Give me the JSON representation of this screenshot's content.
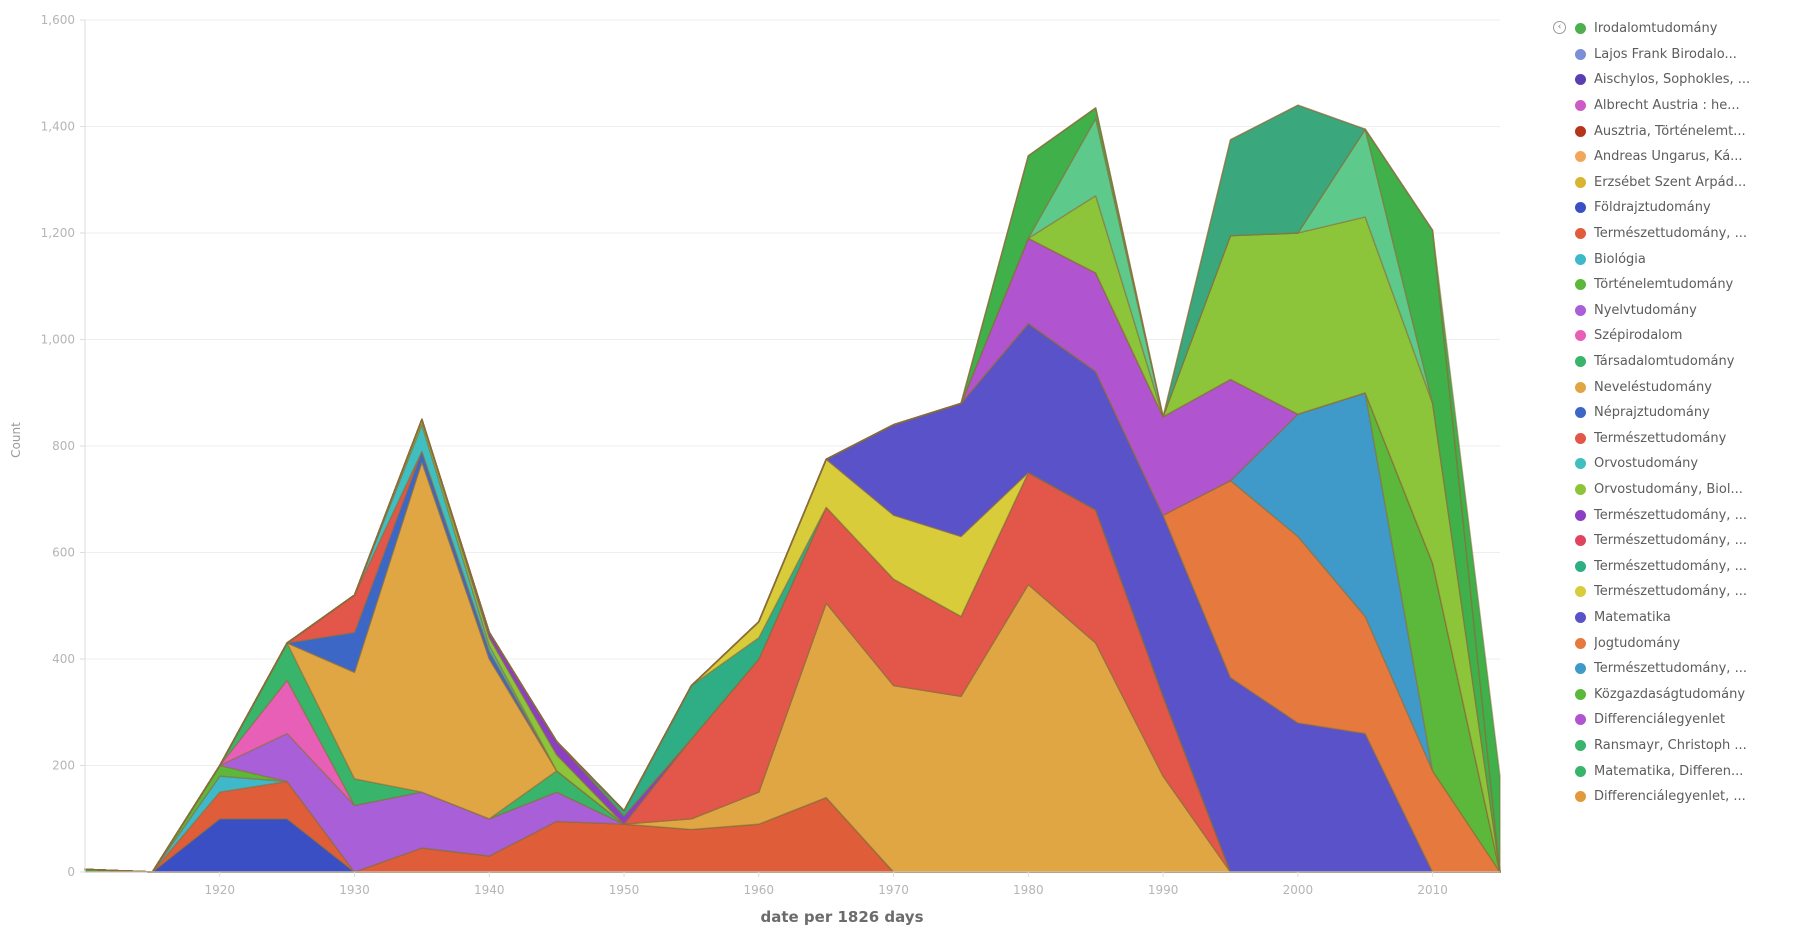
{
  "chart_data": {
    "type": "area",
    "stacked": true,
    "xlabel": "date per 1826 days",
    "ylabel": "Count",
    "xlim": [
      1910,
      2015
    ],
    "ylim": [
      0,
      1600
    ],
    "x_ticks": [
      1920,
      1930,
      1940,
      1950,
      1960,
      1970,
      1980,
      1990,
      2000,
      2010
    ],
    "y_ticks": [
      0,
      200,
      400,
      600,
      800,
      1000,
      1200,
      1400,
      1600
    ],
    "y_tick_labels": [
      "0",
      "200",
      "400",
      "600",
      "800",
      "1,000",
      "1,200",
      "1,400",
      "1,600"
    ],
    "legend_position": "right",
    "x": [
      1910,
      1915,
      1920,
      1925,
      1930,
      1935,
      1940,
      1945,
      1950,
      1955,
      1960,
      1965,
      1970,
      1975,
      1980,
      1985,
      1990,
      1995,
      2000,
      2005,
      2010,
      2015
    ],
    "series": [
      {
        "name": "Irodalomtudomány",
        "color": "#4caf50",
        "values": [
          5,
          0,
          0,
          0,
          0,
          0,
          0,
          0,
          0,
          0,
          0,
          0,
          0,
          0,
          0,
          0,
          0,
          0,
          0,
          0,
          0,
          0
        ]
      },
      {
        "name": "Lajos Frank Birodalo...",
        "color": "#7b8fd6",
        "values": [
          0,
          0,
          0,
          0,
          0,
          0,
          0,
          0,
          0,
          0,
          0,
          0,
          0,
          0,
          0,
          0,
          0,
          0,
          0,
          0,
          0,
          0
        ]
      },
      {
        "name": "Aischylos, Sophokles, ...",
        "color": "#5a3fb0",
        "values": [
          0,
          0,
          0,
          0,
          0,
          0,
          0,
          0,
          0,
          0,
          0,
          0,
          0,
          0,
          0,
          0,
          0,
          0,
          0,
          0,
          0,
          0
        ]
      },
      {
        "name": "Albrecht Austria : he...",
        "color": "#cc5bc8",
        "values": [
          0,
          0,
          0,
          0,
          0,
          0,
          0,
          0,
          0,
          0,
          0,
          0,
          0,
          0,
          0,
          0,
          0,
          0,
          0,
          0,
          0,
          0
        ]
      },
      {
        "name": "Ausztria, Történelemt...",
        "color": "#b5341c",
        "values": [
          0,
          0,
          0,
          0,
          0,
          0,
          0,
          0,
          0,
          0,
          0,
          0,
          0,
          0,
          0,
          0,
          0,
          0,
          0,
          0,
          0,
          0
        ]
      },
      {
        "name": "Andreas Ungarus, Ká...",
        "color": "#f2a65a",
        "values": [
          0,
          0,
          0,
          0,
          0,
          0,
          0,
          0,
          0,
          0,
          0,
          0,
          0,
          0,
          0,
          0,
          0,
          0,
          0,
          0,
          0,
          0
        ]
      },
      {
        "name": "Erzsébet Szent Árpád...",
        "color": "#d9b433",
        "values": [
          0,
          0,
          0,
          0,
          0,
          0,
          0,
          0,
          0,
          0,
          0,
          0,
          0,
          0,
          0,
          0,
          0,
          0,
          0,
          0,
          0,
          0
        ]
      },
      {
        "name": "Földrajztudomány",
        "color": "#3b4fc4",
        "values": [
          0,
          0,
          100,
          100,
          0,
          0,
          0,
          0,
          0,
          0,
          0,
          0,
          0,
          0,
          0,
          0,
          0,
          0,
          0,
          0,
          0,
          0
        ]
      },
      {
        "name": "Természettudomány, ...",
        "color": "#e05d3a",
        "values": [
          0,
          0,
          50,
          70,
          0,
          45,
          30,
          95,
          90,
          80,
          90,
          140,
          0,
          0,
          0,
          0,
          0,
          0,
          0,
          0,
          0,
          0
        ]
      },
      {
        "name": "Biológia",
        "color": "#3fb8c9",
        "values": [
          0,
          0,
          30,
          0,
          0,
          0,
          0,
          0,
          0,
          0,
          0,
          0,
          0,
          0,
          0,
          0,
          0,
          0,
          0,
          0,
          0,
          0
        ]
      },
      {
        "name": "Történelemtudomány",
        "color": "#5cb83a",
        "values": [
          0,
          0,
          20,
          0,
          0,
          0,
          0,
          0,
          0,
          0,
          0,
          0,
          0,
          0,
          0,
          0,
          0,
          0,
          0,
          0,
          0,
          0
        ]
      },
      {
        "name": "Nyelvtudomány",
        "color": "#a95fd8",
        "values": [
          0,
          0,
          0,
          90,
          125,
          105,
          70,
          55,
          0,
          0,
          0,
          0,
          0,
          0,
          0,
          0,
          0,
          0,
          0,
          0,
          0,
          0
        ]
      },
      {
        "name": "Szépirodalom",
        "color": "#e85fb8",
        "values": [
          0,
          0,
          0,
          100,
          0,
          0,
          0,
          0,
          0,
          0,
          0,
          0,
          0,
          0,
          0,
          0,
          0,
          0,
          0,
          0,
          0,
          0
        ]
      },
      {
        "name": "Társadalomtudomány",
        "color": "#38b56a",
        "values": [
          0,
          0,
          0,
          70,
          50,
          0,
          0,
          40,
          0,
          0,
          0,
          0,
          0,
          0,
          0,
          0,
          0,
          0,
          0,
          0,
          0,
          0
        ]
      },
      {
        "name": "Neveléstudomány",
        "color": "#e0a644",
        "values": [
          0,
          0,
          0,
          0,
          200,
          620,
          300,
          0,
          0,
          20,
          60,
          365,
          350,
          330,
          540,
          430,
          180,
          0,
          0,
          0,
          0,
          0
        ]
      },
      {
        "name": "Néprajztudomány",
        "color": "#3d67c7",
        "values": [
          0,
          0,
          0,
          0,
          75,
          20,
          15,
          0,
          0,
          0,
          0,
          0,
          0,
          0,
          0,
          0,
          0,
          0,
          0,
          0,
          0,
          0
        ]
      },
      {
        "name": "Természettudomány",
        "color": "#e2574a",
        "values": [
          0,
          0,
          0,
          0,
          70,
          0,
          0,
          0,
          0,
          150,
          250,
          180,
          200,
          150,
          210,
          250,
          150,
          0,
          0,
          0,
          0,
          0
        ]
      },
      {
        "name": "Orvostudomány",
        "color": "#3fbfc0",
        "values": [
          0,
          0,
          0,
          0,
          0,
          50,
          10,
          0,
          0,
          0,
          0,
          0,
          0,
          0,
          0,
          0,
          0,
          0,
          0,
          0,
          0,
          0
        ]
      },
      {
        "name": "Orvostudomány, Biol...",
        "color": "#8cc43a",
        "values": [
          0,
          0,
          0,
          0,
          0,
          10,
          15,
          30,
          0,
          0,
          0,
          0,
          0,
          0,
          0,
          0,
          0,
          0,
          0,
          0,
          0,
          0
        ]
      },
      {
        "name": "Természettudomány, ...",
        "color": "#8a3fc4",
        "values": [
          0,
          0,
          0,
          0,
          0,
          0,
          10,
          25,
          15,
          0,
          0,
          0,
          0,
          0,
          0,
          0,
          0,
          0,
          0,
          0,
          0,
          0
        ]
      },
      {
        "name": "Természettudomány, ...",
        "color": "#e0455e",
        "values": [
          0,
          0,
          0,
          0,
          0,
          0,
          0,
          0,
          0,
          0,
          0,
          0,
          0,
          0,
          0,
          0,
          0,
          0,
          0,
          0,
          0,
          0
        ]
      },
      {
        "name": "Természettudomány, ...",
        "color": "#2fae86",
        "values": [
          0,
          0,
          0,
          0,
          0,
          0,
          0,
          0,
          10,
          100,
          40,
          0,
          0,
          0,
          0,
          0,
          0,
          0,
          0,
          0,
          0,
          0
        ]
      },
      {
        "name": "Természettudomány, ...",
        "color": "#d9cc3a",
        "values": [
          0,
          0,
          0,
          0,
          0,
          0,
          0,
          0,
          0,
          0,
          30,
          90,
          120,
          150,
          0,
          0,
          0,
          0,
          0,
          0,
          0,
          0
        ]
      },
      {
        "name": "Matematika",
        "color": "#5a52c9",
        "values": [
          0,
          0,
          0,
          0,
          0,
          0,
          0,
          0,
          0,
          0,
          0,
          0,
          170,
          250,
          280,
          260,
          340,
          365,
          280,
          260,
          0,
          0
        ]
      },
      {
        "name": "Jogtudomány",
        "color": "#e67a3e",
        "values": [
          0,
          0,
          0,
          0,
          0,
          0,
          0,
          0,
          0,
          0,
          0,
          0,
          0,
          0,
          0,
          0,
          0,
          370,
          350,
          220,
          190,
          0
        ]
      },
      {
        "name": "Természettudomány, ...",
        "color": "#3f9ac9",
        "values": [
          0,
          0,
          0,
          0,
          0,
          0,
          0,
          0,
          0,
          0,
          0,
          0,
          0,
          0,
          0,
          0,
          0,
          0,
          230,
          420,
          0,
          0
        ]
      },
      {
        "name": "Közgazdaságtudomány",
        "color": "#5cb83a",
        "values": [
          0,
          0,
          0,
          0,
          0,
          0,
          0,
          0,
          0,
          0,
          0,
          0,
          0,
          0,
          0,
          0,
          0,
          0,
          0,
          0,
          390,
          0
        ]
      },
      {
        "name": "Differenciálegyenlet",
        "color": "#b055cf",
        "values": [
          0,
          0,
          0,
          0,
          0,
          0,
          0,
          0,
          0,
          0,
          0,
          0,
          0,
          0,
          160,
          185,
          185,
          190,
          0,
          0,
          0,
          0
        ]
      },
      {
        "name": "Ransmayr, Christoph ...",
        "color": "#38b56a",
        "values": [
          0,
          0,
          0,
          0,
          0,
          0,
          0,
          0,
          0,
          0,
          0,
          0,
          0,
          0,
          0,
          0,
          0,
          0,
          0,
          0,
          0,
          0
        ]
      },
      {
        "name": "Matematika, Differen...",
        "color": "#38b56a",
        "values": [
          0,
          0,
          0,
          0,
          0,
          0,
          0,
          0,
          0,
          0,
          0,
          0,
          0,
          0,
          0,
          0,
          0,
          0,
          0,
          0,
          0,
          0
        ]
      },
      {
        "name": "Differenciálegyenlet, ...",
        "color": "#e09a3a",
        "values": [
          0,
          0,
          0,
          0,
          0,
          0,
          0,
          0,
          0,
          0,
          0,
          0,
          0,
          0,
          0,
          0,
          0,
          0,
          0,
          0,
          0,
          0
        ]
      }
    ],
    "extra_layers": [
      {
        "color": "#a955d4",
        "values": [
          0,
          0,
          0,
          0,
          0,
          0,
          0,
          0,
          0,
          0,
          0,
          0,
          0,
          0,
          0,
          0,
          0,
          0,
          0,
          0,
          0,
          0
        ]
      },
      {
        "color": "#8cc43a",
        "values": [
          0,
          0,
          0,
          0,
          0,
          0,
          0,
          0,
          0,
          0,
          0,
          0,
          0,
          0,
          0,
          145,
          0,
          270,
          340,
          330,
          300,
          0
        ]
      },
      {
        "color": "#5dc98a",
        "values": [
          0,
          0,
          0,
          0,
          0,
          0,
          0,
          0,
          0,
          0,
          0,
          0,
          0,
          0,
          0,
          145,
          0,
          0,
          0,
          165,
          0,
          0
        ]
      },
      {
        "color": "#3fb04a",
        "values": [
          0,
          0,
          0,
          0,
          0,
          0,
          0,
          0,
          0,
          0,
          0,
          0,
          0,
          0,
          155,
          20,
          0,
          0,
          0,
          0,
          325,
          0
        ]
      },
      {
        "color": "#3aa87c",
        "values": [
          0,
          0,
          0,
          0,
          0,
          0,
          0,
          0,
          0,
          0,
          0,
          0,
          0,
          0,
          0,
          0,
          0,
          180,
          240,
          0,
          0,
          0
        ]
      },
      {
        "color": "#3fb04a",
        "values": [
          0,
          0,
          0,
          0,
          0,
          0,
          0,
          0,
          0,
          0,
          0,
          0,
          0,
          0,
          0,
          0,
          0,
          0,
          0,
          0,
          0,
          180
        ]
      }
    ]
  }
}
